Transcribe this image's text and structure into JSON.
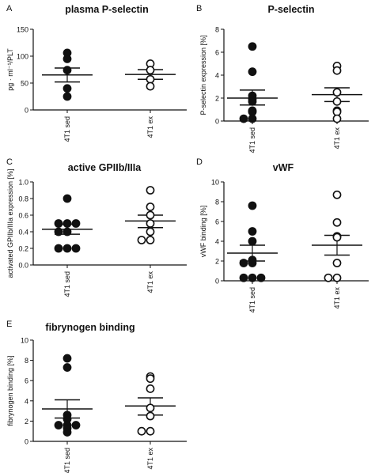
{
  "chart_data": [
    {
      "panel_letter": "A",
      "type": "scatter",
      "title": "plasma P-selectin",
      "ylabel": "pg · ml⁻¹/PLT",
      "categories": [
        "4T1 sed",
        "4T1 ex"
      ],
      "ylim": [
        0,
        150
      ],
      "yticks": [
        0,
        50,
        100,
        150
      ],
      "series": [
        {
          "category": "4T1 sed",
          "filled": true,
          "values": [
            106,
            95,
            74,
            40,
            25
          ],
          "mean": 65,
          "sem_low": 52,
          "sem_high": 78
        },
        {
          "category": "4T1 ex",
          "filled": false,
          "values": [
            86,
            74,
            57,
            44
          ],
          "mean": 66,
          "sem_low": 57,
          "sem_high": 75
        }
      ]
    },
    {
      "panel_letter": "B",
      "type": "scatter",
      "title": "P-selectin",
      "ylabel": "P-selectin expression [%]",
      "categories": [
        "4T1 sed",
        "4T1 ex"
      ],
      "ylim": [
        0,
        8
      ],
      "yticks": [
        0,
        2,
        4,
        6,
        8
      ],
      "series": [
        {
          "category": "4T1 sed",
          "filled": true,
          "values": [
            6.5,
            4.3,
            2.2,
            1.9,
            1.7,
            0.9,
            0.8,
            0.2,
            0.2
          ],
          "mean": 2.0,
          "sem_low": 1.4,
          "sem_high": 2.7
        },
        {
          "category": "4T1 ex",
          "filled": false,
          "values": [
            4.8,
            4.4,
            2.5,
            1.7,
            0.9,
            0.8,
            0.2
          ],
          "mean": 2.3,
          "sem_low": 1.7,
          "sem_high": 2.9
        }
      ]
    },
    {
      "panel_letter": "C",
      "type": "scatter",
      "title": "active GPIIb/IIIa",
      "ylabel": "activated GPIIb/IIIa expression [%]",
      "categories": [
        "4T1 sed",
        "4T1 ex"
      ],
      "ylim": [
        0.0,
        1.0
      ],
      "yticks": [
        "0.0",
        "0.2",
        "0.4",
        "0.6",
        "0.8",
        "1.0"
      ],
      "series": [
        {
          "category": "4T1 sed",
          "filled": true,
          "values": [
            0.8,
            0.5,
            0.5,
            0.5,
            0.4,
            0.4,
            0.2,
            0.2,
            0.2
          ],
          "mean": 0.43,
          "sem_low": 0.37,
          "sem_high": 0.49
        },
        {
          "category": "4T1 ex",
          "filled": false,
          "values": [
            0.9,
            0.7,
            0.6,
            0.5,
            0.4,
            0.3,
            0.3
          ],
          "mean": 0.53,
          "sem_low": 0.45,
          "sem_high": 0.6
        }
      ]
    },
    {
      "panel_letter": "D",
      "type": "scatter",
      "title": "vWF",
      "ylabel": "vWF binding [%]",
      "categories": [
        "4T1 sed",
        "4T1 ex"
      ],
      "ylim": [
        0,
        10
      ],
      "yticks": [
        0,
        2,
        4,
        6,
        8,
        10
      ],
      "series": [
        {
          "category": "4T1 sed",
          "filled": true,
          "values": [
            7.6,
            5.0,
            4.0,
            2.1,
            1.8,
            1.8,
            0.3,
            0.3,
            0.3
          ],
          "mean": 2.8,
          "sem_low": 2.0,
          "sem_high": 3.6
        },
        {
          "category": "4T1 ex",
          "filled": false,
          "values": [
            8.7,
            5.9,
            4.5,
            4.4,
            1.8,
            0.3,
            0.3
          ],
          "mean": 3.6,
          "sem_low": 2.6,
          "sem_high": 4.6
        }
      ]
    },
    {
      "panel_letter": "E",
      "type": "scatter",
      "title": "fibrynogen binding",
      "ylabel": "fibrynogen binding [%]",
      "categories": [
        "4T1 sed",
        "4T1 ex"
      ],
      "ylim": [
        0,
        10
      ],
      "yticks": [
        0,
        2,
        4,
        6,
        8,
        10
      ],
      "series": [
        {
          "category": "4T1 sed",
          "filled": true,
          "values": [
            8.2,
            7.3,
            2.6,
            2.2,
            1.6,
            1.6,
            1.6,
            1.3,
            0.9
          ],
          "mean": 3.2,
          "sem_low": 2.3,
          "sem_high": 4.1
        },
        {
          "category": "4T1 ex",
          "filled": false,
          "values": [
            6.4,
            6.2,
            5.2,
            3.3,
            2.5,
            1.0,
            1.0
          ],
          "mean": 3.5,
          "sem_low": 2.6,
          "sem_high": 4.3
        }
      ]
    }
  ]
}
